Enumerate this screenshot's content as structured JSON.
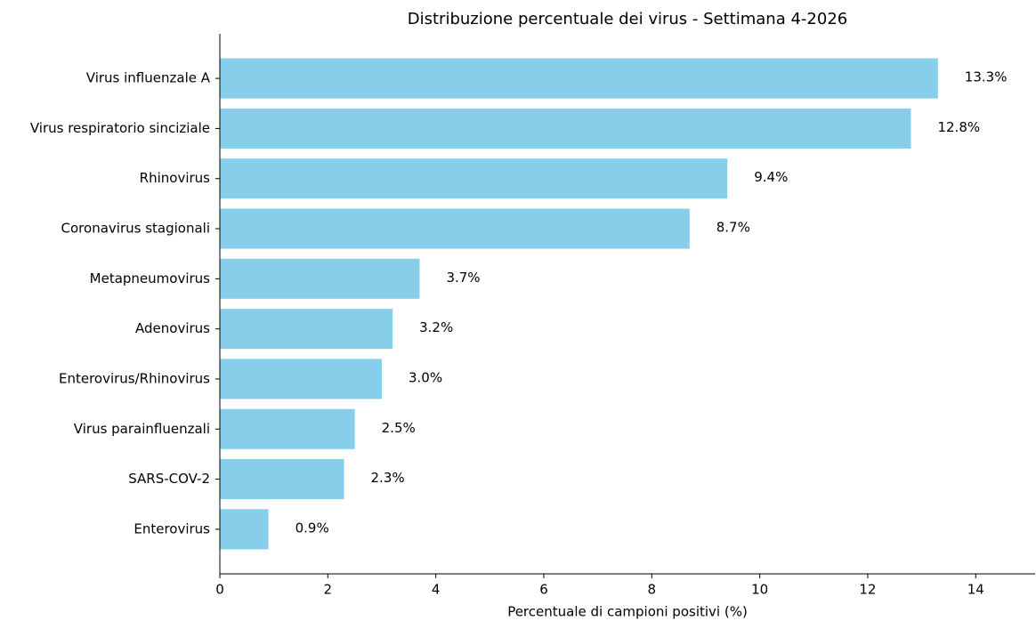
{
  "chart_data": {
    "type": "barh",
    "title": "Distribuzione percentuale dei virus - Settimana 4-2026",
    "xlabel": "Percentuale di campioni positivi (%)",
    "categories": [
      "Virus influenzale A",
      "Virus respiratorio sinciziale",
      "Rhinovirus",
      "Coronavirus stagionali",
      "Metapneumovirus",
      "Adenovirus",
      "Enterovirus/Rhinovirus",
      "Virus parainfluenzali",
      "SARS-COV-2",
      "Enterovirus"
    ],
    "values": [
      13.3,
      12.8,
      9.4,
      8.7,
      3.7,
      3.2,
      3.0,
      2.5,
      2.3,
      0.9
    ],
    "value_labels": [
      "13.3%",
      "12.8%",
      "9.4%",
      "8.7%",
      "3.7%",
      "3.2%",
      "3.0%",
      "2.5%",
      "2.3%",
      "0.9%"
    ],
    "color": "#87ceeb",
    "xlim": [
      0,
      15.1
    ],
    "xticks": [
      0,
      2,
      4,
      6,
      8,
      10,
      12,
      14
    ],
    "grid": false
  }
}
